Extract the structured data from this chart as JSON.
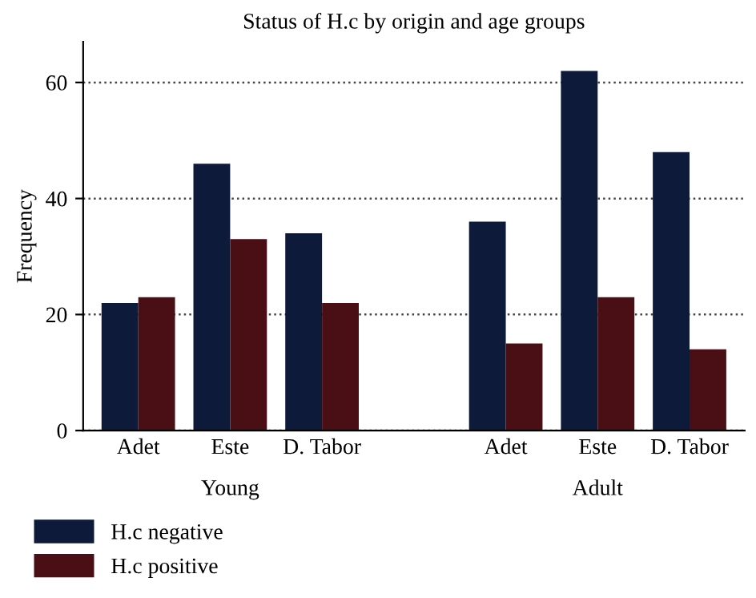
{
  "chart_data": {
    "type": "bar",
    "title": "Status of H.c by origin and age groups",
    "ylabel": "Frequency",
    "categories": [
      "Adet",
      "Este",
      "D. Tabor",
      null,
      "Adet",
      "Este",
      "D. Tabor"
    ],
    "series": [
      {
        "name": "H.c negative",
        "color": "#0d1a3a",
        "values": [
          22,
          46,
          34,
          null,
          36,
          62,
          48
        ]
      },
      {
        "name": "H.c positive",
        "color": "#4a0f14",
        "values": [
          23,
          33,
          22,
          null,
          15,
          23,
          14
        ]
      }
    ],
    "annotations": [
      "Young",
      "Adult"
    ],
    "ylim": [
      0,
      67
    ],
    "yticks": [
      0,
      20,
      40,
      60
    ],
    "grid": "y",
    "legend": "bottom left"
  }
}
